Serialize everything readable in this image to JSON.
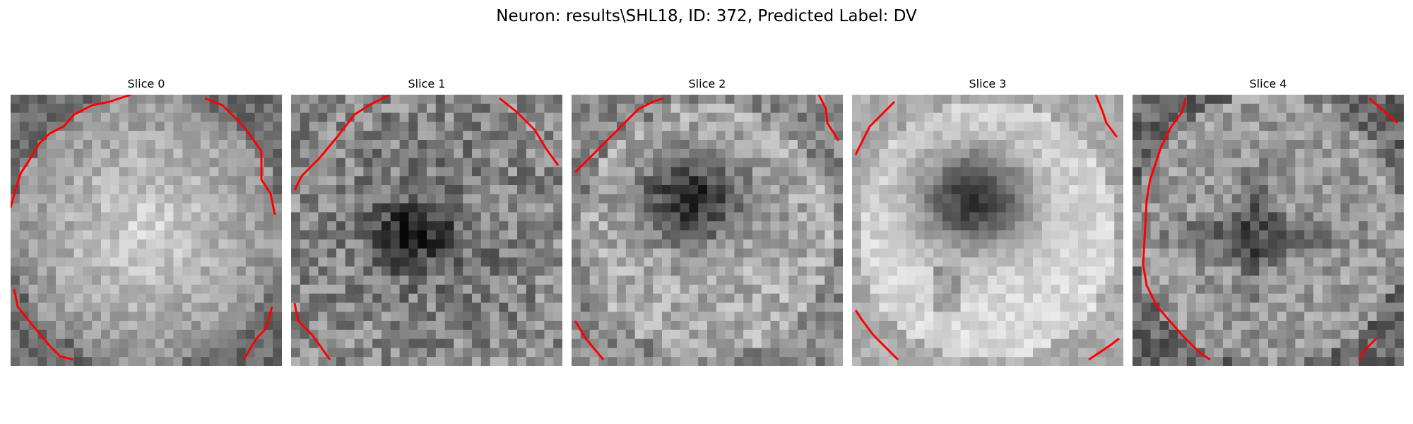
{
  "figure": {
    "title": "Neuron: results\\SHL18, ID: 372, Predicted Label: DV",
    "contour_color": "#ff0000",
    "colormap": "gray"
  },
  "panels": [
    {
      "title": "Slice 0",
      "pattern": "bright-disk"
    },
    {
      "title": "Slice 1",
      "pattern": "dark-spot"
    },
    {
      "title": "Slice 2",
      "pattern": "dark-cloud"
    },
    {
      "title": "Slice 3",
      "pattern": "dark-blob"
    },
    {
      "title": "Slice 4",
      "pattern": "dark-cross"
    }
  ]
}
